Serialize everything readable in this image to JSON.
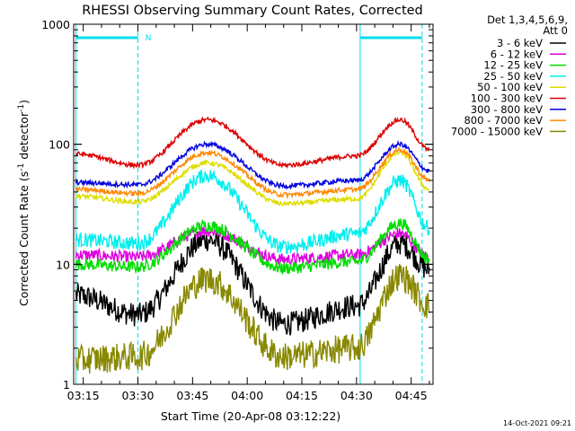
{
  "chart_data": {
    "type": "line",
    "title": "RHESSI Observing Summary Count Rates, Corrected",
    "xlabel": "Start Time (20-Apr-08 03:12:22)",
    "ylabel": "Corrected Count Rate (s",
    "ylabel_sup1": "-1",
    "ylabel_mid": " detector",
    "ylabel_sup2": "-1",
    "ylabel_end": ")",
    "yscale": "log",
    "ylim": [
      1,
      1000
    ],
    "xlim": [
      "03:12:22",
      "04:51:00"
    ],
    "yticks": [
      {
        "value": 1,
        "label": "1"
      },
      {
        "value": 10,
        "label": "10"
      },
      {
        "value": 100,
        "label": "100"
      },
      {
        "value": 1000,
        "label": "1000"
      }
    ],
    "xticks": [
      {
        "value": "03:15",
        "label": "03:15"
      },
      {
        "value": "03:30",
        "label": "03:30"
      },
      {
        "value": "03:45",
        "label": "03:45"
      },
      {
        "value": "04:00",
        "label": "04:00"
      },
      {
        "value": "04:15",
        "label": "04:15"
      },
      {
        "value": "04:30",
        "label": "04:30"
      },
      {
        "value": "04:45",
        "label": "04:45"
      }
    ],
    "legend_header": [
      "Det 1,3,4,5,6,9,",
      "Att 0"
    ],
    "legend_position": "right, outside plot",
    "time_points": [
      "03:13",
      "03:30",
      "03:49",
      "04:10",
      "04:30",
      "04:42",
      "04:50"
    ],
    "series": [
      {
        "name": "3 - 6 keV",
        "color": "#000000",
        "noise": 0.1,
        "values": [
          5.5,
          3.8,
          16,
          3.2,
          4.5,
          15,
          9
        ]
      },
      {
        "name": "6 - 12 keV",
        "color": "#dd00dd",
        "noise": 0.05,
        "values": [
          12,
          11.5,
          19,
          11,
          12,
          18,
          11.5
        ]
      },
      {
        "name": "12 - 25 keV",
        "color": "#00dd00",
        "noise": 0.05,
        "values": [
          10,
          9.5,
          21,
          9.3,
          10.5,
          22,
          11
        ]
      },
      {
        "name": "25 - 50 keV",
        "color": "#00eeee",
        "noise": 0.06,
        "values": [
          16,
          15,
          55,
          14,
          18,
          50,
          20
        ]
      },
      {
        "name": "50 - 100 keV",
        "color": "#dddd00",
        "noise": 0.02,
        "values": [
          37,
          33,
          70,
          32,
          35,
          85,
          42
        ]
      },
      {
        "name": "100 - 300 keV",
        "color": "#dd0000",
        "noise": 0.02,
        "values": [
          83,
          67,
          160,
          67,
          80,
          160,
          90
        ]
      },
      {
        "name": "300 - 800 keV",
        "color": "#0000dd",
        "noise": 0.02,
        "values": [
          48,
          46,
          100,
          45,
          50,
          100,
          60
        ]
      },
      {
        "name": "800 - 7000 keV",
        "color": "#ff8800",
        "noise": 0.02,
        "values": [
          42,
          39,
          85,
          38,
          42,
          90,
          50
        ]
      },
      {
        "name": "7000 - 15000 keV",
        "color": "#888800",
        "noise": 0.12,
        "values": [
          1.6,
          1.7,
          7.5,
          1.7,
          2.0,
          8,
          4.5
        ]
      }
    ],
    "markers": {
      "color": "#00ddee",
      "solid_lines": [
        "03:13",
        "04:31"
      ],
      "dashed_lines": [
        "03:30",
        "04:48"
      ],
      "bars": [
        {
          "start": "03:13",
          "end": "03:30"
        },
        {
          "start": "04:31",
          "end": "04:48"
        }
      ],
      "label": "N",
      "label_at": "03:32"
    },
    "timestamp": "14-Oct-2021 09:21"
  }
}
